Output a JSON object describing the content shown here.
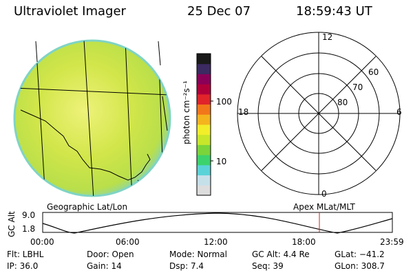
{
  "header": {
    "title": "Ultraviolet Imager",
    "date": "25 Dec 07",
    "time": "18:59:43 UT"
  },
  "colorbar": {
    "unit_label": "photon cm⁻²s⁻¹",
    "tick_100": "100",
    "tick_10": "10",
    "colors": [
      "#dddddd",
      "#c6e0ea",
      "#5ad3d8",
      "#3cd26c",
      "#7ad43a",
      "#c8e62a",
      "#f2ee2a",
      "#f4b41e",
      "#f2771a",
      "#e0242a",
      "#b0003a",
      "#8a0058",
      "#3c2a62",
      "#1a1a1a"
    ]
  },
  "left_panel": {
    "label": "Geographic Lat/Lon",
    "image_colors": {
      "fill": "#c8e34a",
      "edge": "#7fd4c4",
      "highlight": "#f0f08a"
    }
  },
  "polar_panel": {
    "label": "Apex MLat/MLT",
    "mlt_top": "12",
    "mlt_left": "18",
    "mlt_right": "6",
    "mlt_bottom": "0",
    "lat_60": "60",
    "lat_70": "70",
    "lat_80": "80"
  },
  "altitude_strip": {
    "axis_label": "GC Alt",
    "y_max": "9.0",
    "y_min": "1.8",
    "time_ticks": [
      "00:00",
      "06:00",
      "12:00",
      "18:00",
      "23:59"
    ],
    "marker_color": "#cc2222"
  },
  "info": {
    "flt": "Flt: LBHL",
    "ip": "IP: 36.0",
    "door": "Door: Open",
    "gain": "Gain: 14",
    "mode": "Mode: Normal",
    "dsp": "Dsp:     7.4",
    "gc_alt": "GC Alt: 4.4 Re",
    "seq": "Seq: 39",
    "glat": "GLat: −41.2",
    "glon": "GLon: 308.7"
  }
}
